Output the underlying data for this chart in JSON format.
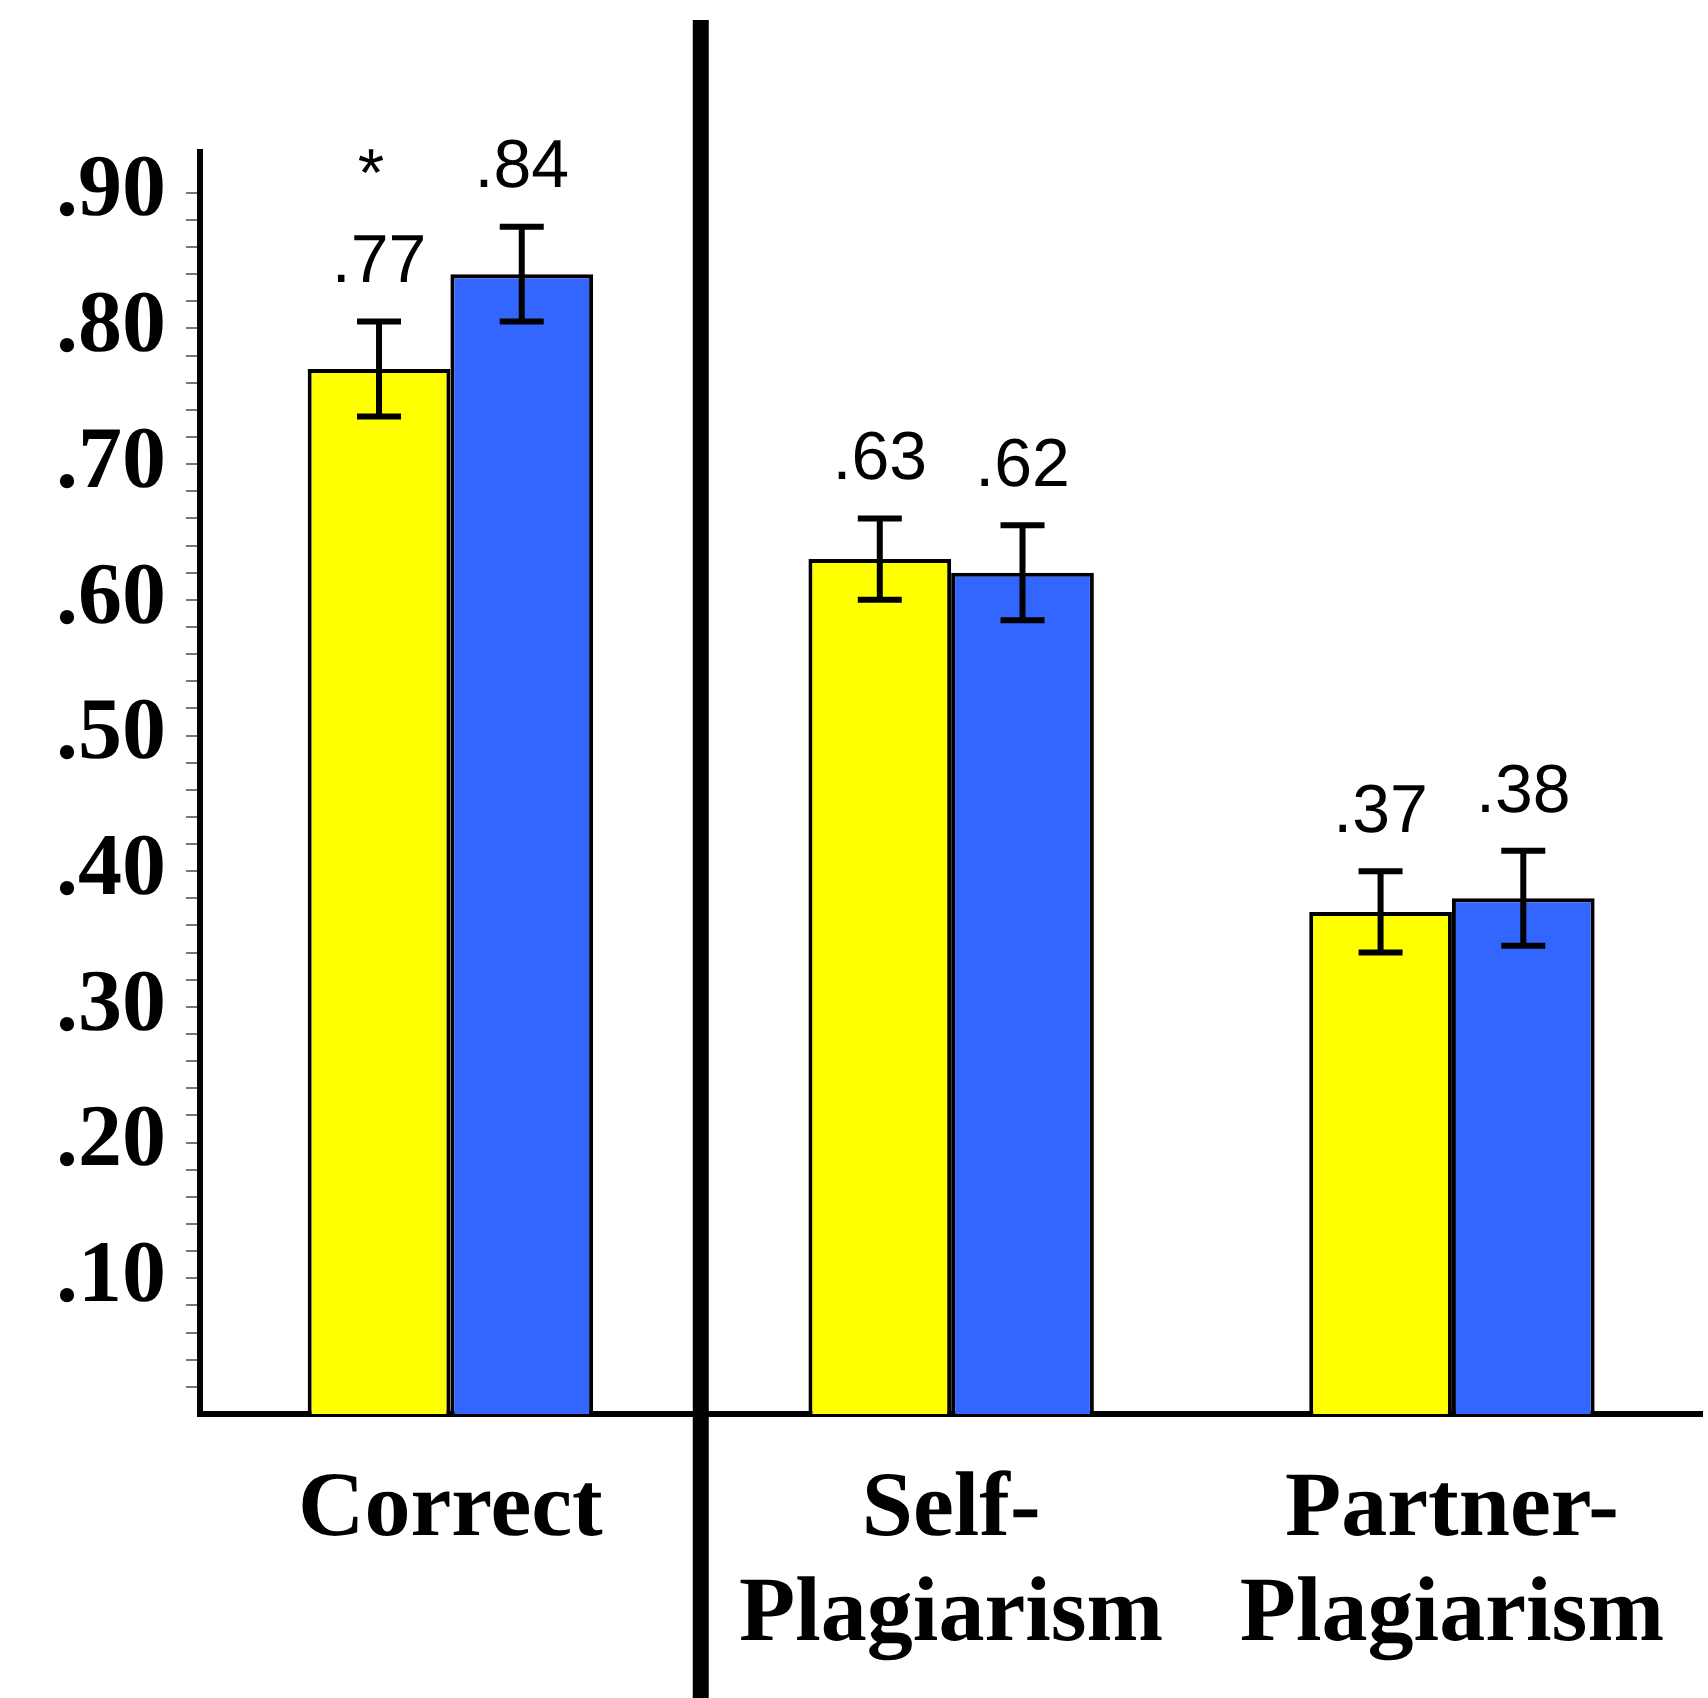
{
  "chart_data": {
    "type": "bar",
    "categories": [
      "Correct",
      "Self-Plagiarism",
      "Partner-Plagiarism"
    ],
    "series": [
      {
        "color": "#ffff00",
        "values": [
          0.77,
          0.63,
          0.37
        ],
        "errors": [
          0.035,
          0.03,
          0.03
        ],
        "value_labels": [
          ".77",
          ".63",
          ".37"
        ]
      },
      {
        "color": "#3366ff",
        "values": [
          0.84,
          0.62,
          0.38
        ],
        "errors": [
          0.035,
          0.035,
          0.035
        ],
        "value_labels": [
          ".84",
          ".62",
          ".38"
        ]
      }
    ],
    "ylim": [
      0,
      0.93
    ],
    "yticks": [
      {
        "value": 0.02,
        "label": null
      },
      {
        "value": 0.04,
        "label": null
      },
      {
        "value": 0.06,
        "label": null
      },
      {
        "value": 0.08,
        "label": null
      },
      {
        "value": 0.1,
        "label": ".10"
      },
      {
        "value": 0.12,
        "label": null
      },
      {
        "value": 0.14,
        "label": null
      },
      {
        "value": 0.16,
        "label": null
      },
      {
        "value": 0.18,
        "label": null
      },
      {
        "value": 0.2,
        "label": ".20"
      },
      {
        "value": 0.22,
        "label": null
      },
      {
        "value": 0.24,
        "label": null
      },
      {
        "value": 0.26,
        "label": null
      },
      {
        "value": 0.28,
        "label": null
      },
      {
        "value": 0.3,
        "label": ".30"
      },
      {
        "value": 0.32,
        "label": null
      },
      {
        "value": 0.34,
        "label": null
      },
      {
        "value": 0.36,
        "label": null
      },
      {
        "value": 0.38,
        "label": null
      },
      {
        "value": 0.4,
        "label": ".40"
      },
      {
        "value": 0.42,
        "label": null
      },
      {
        "value": 0.44,
        "label": null
      },
      {
        "value": 0.46,
        "label": null
      },
      {
        "value": 0.48,
        "label": null
      },
      {
        "value": 0.5,
        "label": ".50"
      },
      {
        "value": 0.52,
        "label": null
      },
      {
        "value": 0.54,
        "label": null
      },
      {
        "value": 0.56,
        "label": null
      },
      {
        "value": 0.58,
        "label": null
      },
      {
        "value": 0.6,
        "label": ".60"
      },
      {
        "value": 0.62,
        "label": null
      },
      {
        "value": 0.64,
        "label": null
      },
      {
        "value": 0.66,
        "label": null
      },
      {
        "value": 0.68,
        "label": null
      },
      {
        "value": 0.7,
        "label": ".70"
      },
      {
        "value": 0.72,
        "label": null
      },
      {
        "value": 0.74,
        "label": null
      },
      {
        "value": 0.76,
        "label": null
      },
      {
        "value": 0.78,
        "label": null
      },
      {
        "value": 0.8,
        "label": ".80"
      },
      {
        "value": 0.82,
        "label": null
      },
      {
        "value": 0.84,
        "label": null
      },
      {
        "value": 0.86,
        "label": null
      },
      {
        "value": 0.88,
        "label": null
      },
      {
        "value": 0.9,
        "label": ".90"
      }
    ],
    "grid": false,
    "legend": false,
    "annotations": [
      "*"
    ]
  }
}
